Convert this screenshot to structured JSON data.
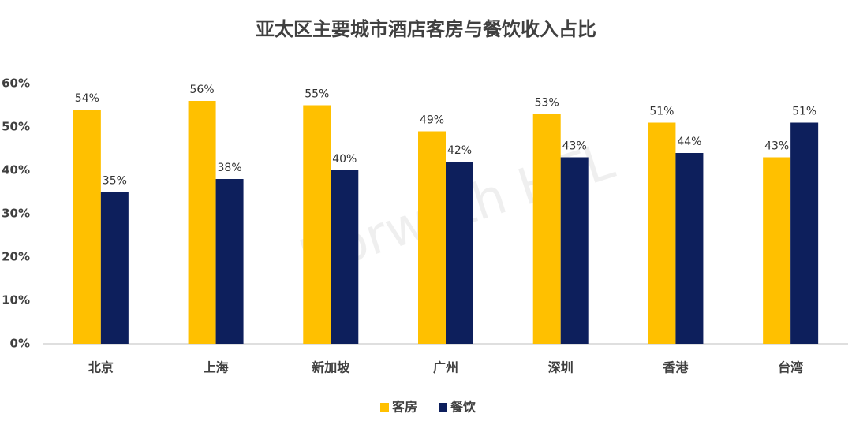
{
  "chart_data": {
    "type": "bar",
    "title": "亚太区主要城市酒店客房与餐饮收入占比",
    "watermark": "Horwath HTL",
    "categories": [
      "北京",
      "上海",
      "新加坡",
      "广州",
      "深圳",
      "香港",
      "台湾"
    ],
    "series": [
      {
        "name": "客房",
        "color": "#ffc000",
        "values": [
          54,
          56,
          55,
          49,
          53,
          51,
          43
        ],
        "value_labels": [
          "54%",
          "56%",
          "55%",
          "49%",
          "53%",
          "51%",
          "43%"
        ]
      },
      {
        "name": "餐饮",
        "color": "#0d1f5c",
        "values": [
          35,
          38,
          40,
          42,
          43,
          44,
          51
        ],
        "value_labels": [
          "35%",
          "38%",
          "40%",
          "42%",
          "43%",
          "44%",
          "51%"
        ]
      }
    ],
    "ylim": [
      0,
      60
    ],
    "yticks": [
      {
        "value": 0,
        "label": "0%"
      },
      {
        "value": 10,
        "label": "10%"
      },
      {
        "value": 20,
        "label": "20%"
      },
      {
        "value": 30,
        "label": "30%"
      },
      {
        "value": 40,
        "label": "40%"
      },
      {
        "value": 50,
        "label": "50%"
      },
      {
        "value": 60,
        "label": "60%"
      }
    ],
    "grid": false,
    "legend": "bottom"
  }
}
